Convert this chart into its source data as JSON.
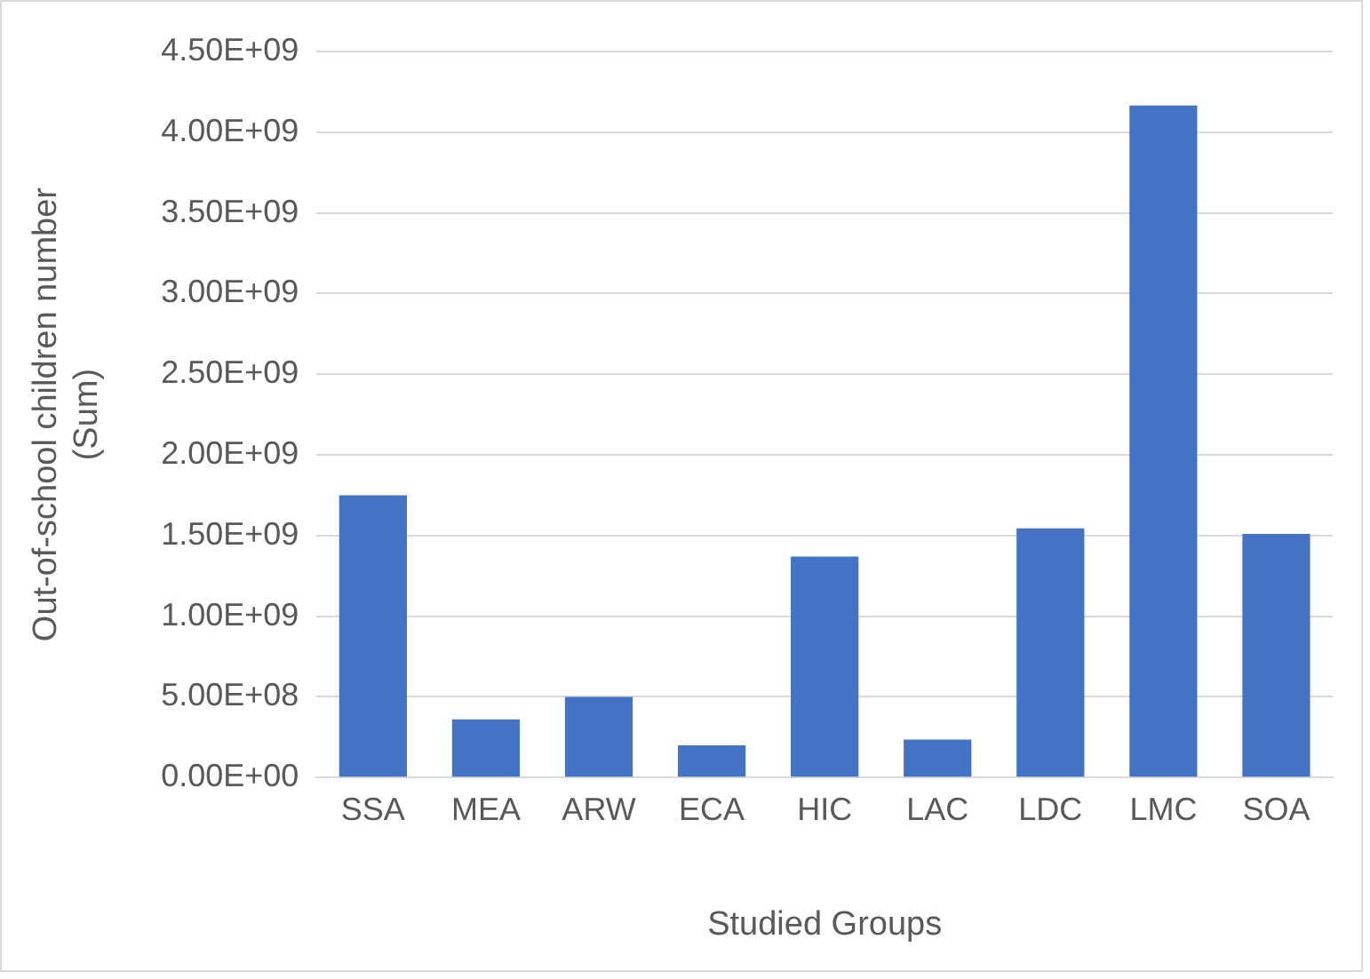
{
  "chart_data": {
    "type": "bar",
    "xlabel": "Studied Groups",
    "ylabel": "Out-of-school children number (Sum)",
    "categories": [
      "SSA",
      "MEA",
      "ARW",
      "ECA",
      "HIC",
      "LAC",
      "LDC",
      "LMC",
      "SOA"
    ],
    "values": [
      1750000000.0,
      360000000.0,
      500000000.0,
      200000000.0,
      1370000000.0,
      235000000.0,
      1545000000.0,
      4165000000.0,
      1510000000.0
    ],
    "color": "#4472c4",
    "ylim": [
      0,
      4500000000.0
    ],
    "yticks": [
      {
        "value": 0,
        "label": "0.00E+00"
      },
      {
        "value": 500000000.0,
        "label": "5.00E+08"
      },
      {
        "value": 1000000000.0,
        "label": "1.00E+09"
      },
      {
        "value": 1500000000.0,
        "label": "1.50E+09"
      },
      {
        "value": 2000000000.0,
        "label": "2.00E+09"
      },
      {
        "value": 2500000000.0,
        "label": "2.50E+09"
      },
      {
        "value": 3000000000.0,
        "label": "3.00E+09"
      },
      {
        "value": 3500000000.0,
        "label": "3.50E+09"
      },
      {
        "value": 4000000000.0,
        "label": "4.00E+09"
      },
      {
        "value": 4500000000.0,
        "label": "4.50E+09"
      }
    ],
    "grid": "y",
    "legend": false
  }
}
